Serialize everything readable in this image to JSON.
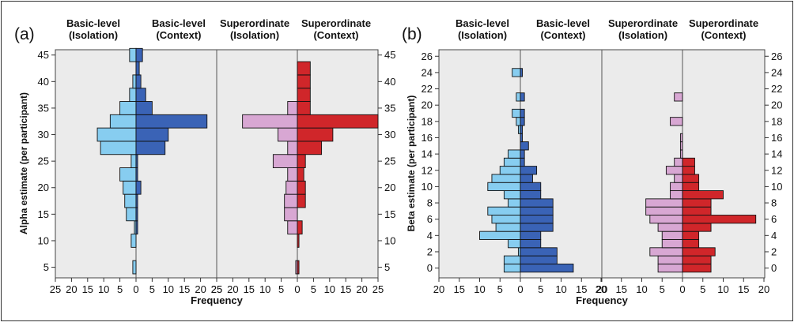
{
  "colors": {
    "panel_bg": "#ebebeb",
    "basic_isolation": "#87cdf0",
    "basic_context": "#3a63b6",
    "super_isolation": "#d8a7d3",
    "super_context": "#d0262a",
    "bar_edge": "#111111",
    "divider": "#555555"
  },
  "chart_data": [
    {
      "type": "bar",
      "orientation": "horizontal-histogram",
      "panel_label": "(a)",
      "ylabel": "Alpha estimate (per participant)",
      "xlabel": "Frequency",
      "bin_width": 2.5,
      "ylim": [
        3,
        46
      ],
      "yticks": [
        5,
        10,
        15,
        20,
        25,
        30,
        35,
        40,
        45
      ],
      "xlim_per_side": [
        0,
        25
      ],
      "xticks": [
        25,
        20,
        15,
        10,
        5,
        0,
        5,
        10,
        15,
        20,
        25
      ],
      "grid": false,
      "groups": [
        {
          "name": "Basic-level",
          "series": [
            {
              "name": "Basic-level (Isolation)",
              "label_line1": "Basic-level",
              "label_line2": "(Isolation)",
              "side": "left",
              "color": "#87cdf0",
              "bins": [
                {
                  "y": 5,
                  "value": 1
                },
                {
                  "y": 10,
                  "value": 1.5
                },
                {
                  "y": 12.5,
                  "value": 0.5
                },
                {
                  "y": 15,
                  "value": 3
                },
                {
                  "y": 17.5,
                  "value": 3.5
                },
                {
                  "y": 20,
                  "value": 4
                },
                {
                  "y": 22.5,
                  "value": 5
                },
                {
                  "y": 25,
                  "value": 1.5
                },
                {
                  "y": 27.5,
                  "value": 11
                },
                {
                  "y": 30,
                  "value": 12
                },
                {
                  "y": 32.5,
                  "value": 8
                },
                {
                  "y": 35,
                  "value": 5
                },
                {
                  "y": 37.5,
                  "value": 2
                },
                {
                  "y": 40,
                  "value": 1
                },
                {
                  "y": 45,
                  "value": 2
                }
              ]
            },
            {
              "name": "Basic-level (Context)",
              "label_line1": "Basic-level",
              "label_line2": "(Context)",
              "side": "right",
              "color": "#3a63b6",
              "bins": [
                {
                  "y": 12.5,
                  "value": 0.5
                },
                {
                  "y": 15,
                  "value": 0.5
                },
                {
                  "y": 17.5,
                  "value": 0.5
                },
                {
                  "y": 20,
                  "value": 1.5
                },
                {
                  "y": 22.5,
                  "value": 0.5
                },
                {
                  "y": 25,
                  "value": 0.5
                },
                {
                  "y": 27.5,
                  "value": 9
                },
                {
                  "y": 30,
                  "value": 10
                },
                {
                  "y": 32.5,
                  "value": 22
                },
                {
                  "y": 35,
                  "value": 5
                },
                {
                  "y": 37.5,
                  "value": 3
                },
                {
                  "y": 40,
                  "value": 1.5
                },
                {
                  "y": 42.5,
                  "value": 1
                },
                {
                  "y": 45,
                  "value": 2
                }
              ]
            }
          ]
        },
        {
          "name": "Superordinate",
          "series": [
            {
              "name": "Superordinate (Isolation)",
              "label_line1": "Superordinate",
              "label_line2": "(Isolation)",
              "side": "left",
              "color": "#d8a7d3",
              "bins": [
                {
                  "y": 5,
                  "value": 0.5
                },
                {
                  "y": 12.5,
                  "value": 3
                },
                {
                  "y": 15,
                  "value": 4
                },
                {
                  "y": 17.5,
                  "value": 4
                },
                {
                  "y": 20,
                  "value": 3.5
                },
                {
                  "y": 22.5,
                  "value": 3
                },
                {
                  "y": 25,
                  "value": 7.5
                },
                {
                  "y": 27.5,
                  "value": 3
                },
                {
                  "y": 30,
                  "value": 6
                },
                {
                  "y": 32.5,
                  "value": 17
                },
                {
                  "y": 35,
                  "value": 3
                }
              ]
            },
            {
              "name": "Superordinate (Context)",
              "label_line1": "Superordinate",
              "label_line2": "(Context)",
              "side": "right",
              "color": "#d0262a",
              "bins": [
                {
                  "y": 5,
                  "value": 0.5
                },
                {
                  "y": 10,
                  "value": 0.5
                },
                {
                  "y": 12.5,
                  "value": 1.5
                },
                {
                  "y": 17.5,
                  "value": 2.5
                },
                {
                  "y": 20,
                  "value": 2.5
                },
                {
                  "y": 22.5,
                  "value": 2
                },
                {
                  "y": 25,
                  "value": 2.5
                },
                {
                  "y": 27.5,
                  "value": 7.5
                },
                {
                  "y": 30,
                  "value": 11
                },
                {
                  "y": 32.5,
                  "value": 25
                },
                {
                  "y": 35,
                  "value": 4
                },
                {
                  "y": 37.5,
                  "value": 4
                },
                {
                  "y": 40,
                  "value": 4
                },
                {
                  "y": 42.5,
                  "value": 4
                }
              ]
            }
          ]
        }
      ]
    },
    {
      "type": "bar",
      "orientation": "horizontal-histogram",
      "panel_label": "(b)",
      "ylabel": "Beta estimate (per participant)",
      "xlabel": "Frequency",
      "bin_width": 1,
      "ylim": [
        -1.2,
        26.8
      ],
      "yticks": [
        0,
        2,
        4,
        6,
        8,
        10,
        12,
        14,
        16,
        18,
        20,
        22,
        24,
        26
      ],
      "xlim_per_side": [
        0,
        20
      ],
      "xticks": [
        20,
        15,
        10,
        5,
        0,
        5,
        10,
        15,
        20
      ],
      "grid": false,
      "groups": [
        {
          "name": "Basic-level",
          "series": [
            {
              "name": "Basic-level (Isolation)",
              "label_line1": "Basic-level",
              "label_line2": "(Isolation)",
              "side": "left",
              "color": "#87cdf0",
              "bins": [
                {
                  "y": 0,
                  "value": 4
                },
                {
                  "y": 1,
                  "value": 4
                },
                {
                  "y": 2,
                  "value": 0.5
                },
                {
                  "y": 3,
                  "value": 3
                },
                {
                  "y": 4,
                  "value": 10
                },
                {
                  "y": 5,
                  "value": 6
                },
                {
                  "y": 6,
                  "value": 7
                },
                {
                  "y": 7,
                  "value": 8
                },
                {
                  "y": 8,
                  "value": 3
                },
                {
                  "y": 9,
                  "value": 4
                },
                {
                  "y": 10,
                  "value": 8
                },
                {
                  "y": 11,
                  "value": 7
                },
                {
                  "y": 12,
                  "value": 5
                },
                {
                  "y": 13,
                  "value": 4
                },
                {
                  "y": 14,
                  "value": 3
                },
                {
                  "y": 17,
                  "value": 0.5
                },
                {
                  "y": 18,
                  "value": 1
                },
                {
                  "y": 19,
                  "value": 2
                },
                {
                  "y": 21,
                  "value": 1
                },
                {
                  "y": 24,
                  "value": 2
                }
              ]
            },
            {
              "name": "Basic-level (Context)",
              "label_line1": "Basic-level",
              "label_line2": "(Context)",
              "side": "right",
              "color": "#3a63b6",
              "bins": [
                {
                  "y": 0,
                  "value": 13
                },
                {
                  "y": 1,
                  "value": 9
                },
                {
                  "y": 2,
                  "value": 9
                },
                {
                  "y": 3,
                  "value": 5
                },
                {
                  "y": 4,
                  "value": 5
                },
                {
                  "y": 5,
                  "value": 8
                },
                {
                  "y": 6,
                  "value": 8
                },
                {
                  "y": 7,
                  "value": 8
                },
                {
                  "y": 8,
                  "value": 8
                },
                {
                  "y": 9,
                  "value": 5
                },
                {
                  "y": 10,
                  "value": 5
                },
                {
                  "y": 11,
                  "value": 3
                },
                {
                  "y": 12,
                  "value": 4
                },
                {
                  "y": 13,
                  "value": 1
                },
                {
                  "y": 14,
                  "value": 1
                },
                {
                  "y": 15,
                  "value": 2
                },
                {
                  "y": 16,
                  "value": 0.5
                },
                {
                  "y": 17,
                  "value": 0.5
                },
                {
                  "y": 18,
                  "value": 1
                },
                {
                  "y": 19,
                  "value": 1
                },
                {
                  "y": 21,
                  "value": 1
                },
                {
                  "y": 24,
                  "value": 0.5
                }
              ]
            }
          ]
        },
        {
          "name": "Superordinate",
          "series": [
            {
              "name": "Superordinate (Isolation)",
              "label_line1": "Superordinate",
              "label_line2": "(Isolation)",
              "side": "left",
              "color": "#d8a7d3",
              "bins": [
                {
                  "y": 0,
                  "value": 6
                },
                {
                  "y": 1,
                  "value": 6
                },
                {
                  "y": 2,
                  "value": 8
                },
                {
                  "y": 3,
                  "value": 5
                },
                {
                  "y": 4,
                  "value": 5
                },
                {
                  "y": 5,
                  "value": 6
                },
                {
                  "y": 6,
                  "value": 8
                },
                {
                  "y": 7,
                  "value": 9
                },
                {
                  "y": 8,
                  "value": 9
                },
                {
                  "y": 9,
                  "value": 3
                },
                {
                  "y": 10,
                  "value": 3
                },
                {
                  "y": 11,
                  "value": 2
                },
                {
                  "y": 12,
                  "value": 4
                },
                {
                  "y": 13,
                  "value": 2
                },
                {
                  "y": 14,
                  "value": 0.5
                },
                {
                  "y": 15,
                  "value": 0.5
                },
                {
                  "y": 16,
                  "value": 0.5
                },
                {
                  "y": 18,
                  "value": 3
                },
                {
                  "y": 21,
                  "value": 2
                }
              ]
            },
            {
              "name": "Superordinate (Context)",
              "label_line1": "Superordinate",
              "label_line2": "(Context)",
              "side": "right",
              "color": "#d0262a",
              "bins": [
                {
                  "y": 0,
                  "value": 7
                },
                {
                  "y": 1,
                  "value": 7
                },
                {
                  "y": 2,
                  "value": 8
                },
                {
                  "y": 3,
                  "value": 4
                },
                {
                  "y": 4,
                  "value": 4
                },
                {
                  "y": 5,
                  "value": 7
                },
                {
                  "y": 6,
                  "value": 18
                },
                {
                  "y": 7,
                  "value": 7
                },
                {
                  "y": 8,
                  "value": 7
                },
                {
                  "y": 9,
                  "value": 10
                },
                {
                  "y": 10,
                  "value": 4
                },
                {
                  "y": 11,
                  "value": 4
                },
                {
                  "y": 12,
                  "value": 3
                },
                {
                  "y": 13,
                  "value": 3
                }
              ]
            }
          ]
        }
      ]
    }
  ]
}
